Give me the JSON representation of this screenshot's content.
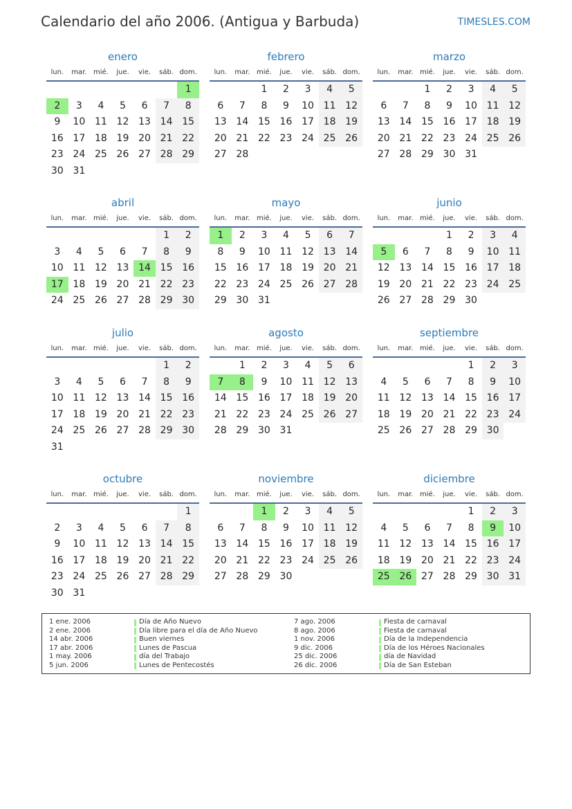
{
  "header": {
    "title": "Calendario del año 2006. (Antigua y Barbuda)",
    "site": "TIMESLES.COM"
  },
  "weekdays": [
    "lun.",
    "mar.",
    "mié.",
    "jue.",
    "vie.",
    "sáb.",
    "dom."
  ],
  "colors": {
    "title": "#2a7ab8",
    "holiday": "#98f08a",
    "weekend": "#f2f2f2"
  },
  "months": [
    {
      "name": "enero",
      "offset": 6,
      "days": 31,
      "holidays": [
        1,
        2
      ]
    },
    {
      "name": "febrero",
      "offset": 2,
      "days": 28,
      "holidays": []
    },
    {
      "name": "marzo",
      "offset": 2,
      "days": 31,
      "holidays": []
    },
    {
      "name": "abril",
      "offset": 5,
      "days": 30,
      "holidays": [
        14,
        17
      ]
    },
    {
      "name": "mayo",
      "offset": 0,
      "days": 31,
      "holidays": [
        1
      ]
    },
    {
      "name": "junio",
      "offset": 3,
      "days": 30,
      "holidays": [
        5
      ]
    },
    {
      "name": "julio",
      "offset": 5,
      "days": 31,
      "holidays": []
    },
    {
      "name": "agosto",
      "offset": 1,
      "days": 31,
      "holidays": [
        7,
        8
      ]
    },
    {
      "name": "septiembre",
      "offset": 4,
      "days": 30,
      "holidays": []
    },
    {
      "name": "octubre",
      "offset": 6,
      "days": 31,
      "holidays": []
    },
    {
      "name": "noviembre",
      "offset": 2,
      "days": 30,
      "holidays": [
        1
      ]
    },
    {
      "name": "diciembre",
      "offset": 4,
      "days": 31,
      "holidays": [
        9,
        25,
        26
      ]
    }
  ],
  "legend": [
    {
      "date": "1 ene. 2006",
      "name": "Día de Año Nuevo"
    },
    {
      "date": "2 ene. 2006",
      "name": "Día libre para el día de Año Nuevo"
    },
    {
      "date": "14 abr. 2006",
      "name": "Buen viernes"
    },
    {
      "date": "17 abr. 2006",
      "name": "Lunes de Pascua"
    },
    {
      "date": "1 may. 2006",
      "name": "día del Trabajo"
    },
    {
      "date": "5 jun. 2006",
      "name": "Lunes de Pentecostés"
    },
    {
      "date": "7 ago. 2006",
      "name": "Fiesta de carnaval"
    },
    {
      "date": "8 ago. 2006",
      "name": "Fiesta de carnaval"
    },
    {
      "date": "1 nov. 2006",
      "name": "Día de la Independencia"
    },
    {
      "date": "9 dic. 2006",
      "name": "Día de los Héroes Nacionales"
    },
    {
      "date": "25 dic. 2006",
      "name": "día de Navidad"
    },
    {
      "date": "26 dic. 2006",
      "name": "Día de San Esteban"
    }
  ]
}
